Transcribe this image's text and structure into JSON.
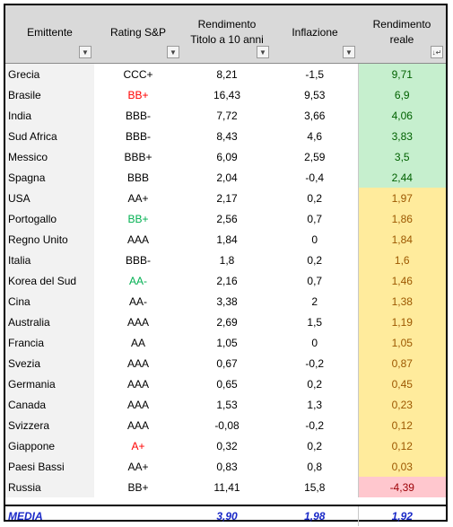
{
  "colors": {
    "header_bg": "#d9d9d9",
    "name_bg": "#f2f2f2",
    "green_bg": "#c6efce",
    "green_fg": "#006100",
    "yellow_bg": "#ffeb9c",
    "yellow_fg": "#9c5700",
    "red_bg": "#ffc7ce",
    "red_fg": "#9c0006",
    "rating_red": "#ff0000",
    "rating_green": "#00b050",
    "media": "#1a29c8"
  },
  "headers": {
    "emittente": "Emittente",
    "rating": "Rating S&P",
    "rendimento_line1": "Rendimento",
    "rendimento_line2": "Titolo a 10 anni",
    "inflazione": "Inflazione",
    "reale_line1": "Rendimento",
    "reale_line2": "reale",
    "filter_icon": "dropdown-arrow-icon",
    "sort_icon": "sort-descending-icon"
  },
  "rows": [
    {
      "name": "Grecia",
      "rating": "CCC+",
      "rating_color": "black",
      "yield": "8,21",
      "inflation": "-1,5",
      "real": "9,71",
      "band": "green"
    },
    {
      "name": "Brasile",
      "rating": "BB+",
      "rating_color": "red",
      "yield": "16,43",
      "inflation": "9,53",
      "real": "6,9",
      "band": "green"
    },
    {
      "name": "India",
      "rating": "BBB-",
      "rating_color": "black",
      "yield": "7,72",
      "inflation": "3,66",
      "real": "4,06",
      "band": "green"
    },
    {
      "name": "Sud Africa",
      "rating": "BBB-",
      "rating_color": "black",
      "yield": "8,43",
      "inflation": "4,6",
      "real": "3,83",
      "band": "green"
    },
    {
      "name": "Messico",
      "rating": "BBB+",
      "rating_color": "black",
      "yield": "6,09",
      "inflation": "2,59",
      "real": "3,5",
      "band": "green"
    },
    {
      "name": "Spagna",
      "rating": "BBB",
      "rating_color": "black",
      "yield": "2,04",
      "inflation": "-0,4",
      "real": "2,44",
      "band": "green"
    },
    {
      "name": "USA",
      "rating": "AA+",
      "rating_color": "black",
      "yield": "2,17",
      "inflation": "0,2",
      "real": "1,97",
      "band": "yellow"
    },
    {
      "name": "Portogallo",
      "rating": "BB+",
      "rating_color": "green",
      "yield": "2,56",
      "inflation": "0,7",
      "real": "1,86",
      "band": "yellow"
    },
    {
      "name": "Regno Unito",
      "rating": "AAA",
      "rating_color": "black",
      "yield": "1,84",
      "inflation": "0",
      "real": "1,84",
      "band": "yellow"
    },
    {
      "name": "Italia",
      "rating": "BBB-",
      "rating_color": "black",
      "yield": "1,8",
      "inflation": "0,2",
      "real": "1,6",
      "band": "yellow"
    },
    {
      "name": "Korea del Sud",
      "rating": "AA-",
      "rating_color": "green",
      "yield": "2,16",
      "inflation": "0,7",
      "real": "1,46",
      "band": "yellow"
    },
    {
      "name": "Cina",
      "rating": "AA-",
      "rating_color": "black",
      "yield": "3,38",
      "inflation": "2",
      "real": "1,38",
      "band": "yellow"
    },
    {
      "name": "Australia",
      "rating": "AAA",
      "rating_color": "black",
      "yield": "2,69",
      "inflation": "1,5",
      "real": "1,19",
      "band": "yellow"
    },
    {
      "name": "Francia",
      "rating": "AA",
      "rating_color": "black",
      "yield": "1,05",
      "inflation": "0",
      "real": "1,05",
      "band": "yellow"
    },
    {
      "name": "Svezia",
      "rating": "AAA",
      "rating_color": "black",
      "yield": "0,67",
      "inflation": "-0,2",
      "real": "0,87",
      "band": "yellow"
    },
    {
      "name": "Germania",
      "rating": "AAA",
      "rating_color": "black",
      "yield": "0,65",
      "inflation": "0,2",
      "real": "0,45",
      "band": "yellow"
    },
    {
      "name": "Canada",
      "rating": "AAA",
      "rating_color": "black",
      "yield": "1,53",
      "inflation": "1,3",
      "real": "0,23",
      "band": "yellow"
    },
    {
      "name": "Svizzera",
      "rating": "AAA",
      "rating_color": "black",
      "yield": "-0,08",
      "inflation": "-0,2",
      "real": "0,12",
      "band": "yellow"
    },
    {
      "name": "Giappone",
      "rating": "A+",
      "rating_color": "red",
      "yield": "0,32",
      "inflation": "0,2",
      "real": "0,12",
      "band": "yellow"
    },
    {
      "name": "Paesi Bassi",
      "rating": "AA+",
      "rating_color": "black",
      "yield": "0,83",
      "inflation": "0,8",
      "real": "0,03",
      "band": "yellow"
    },
    {
      "name": "Russia",
      "rating": "BB+",
      "rating_color": "black",
      "yield": "11,41",
      "inflation": "15,8",
      "real": "-4,39",
      "band": "red"
    }
  ],
  "media": {
    "label": "MEDIA",
    "yield": "3,90",
    "inflation": "1,98",
    "real": "1,92"
  }
}
